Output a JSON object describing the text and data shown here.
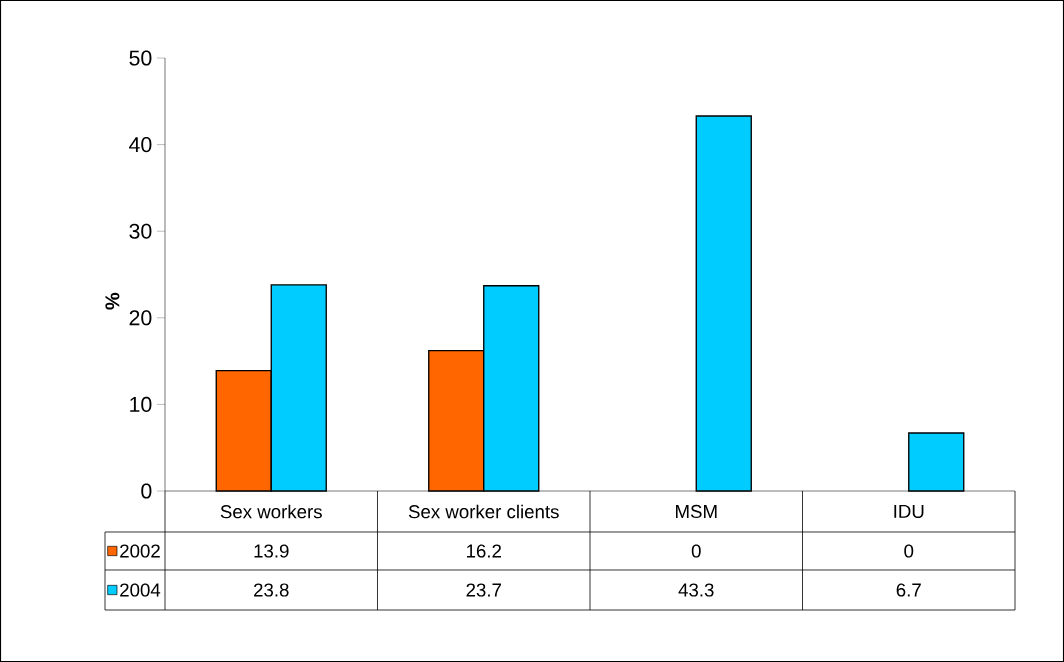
{
  "chart_data": {
    "type": "bar",
    "ylabel": "%",
    "categories": [
      "Sex workers",
      "Sex worker clients",
      "MSM",
      "IDU"
    ],
    "series": [
      {
        "name": "2002",
        "color": "#ff6600",
        "values": [
          13.9,
          16.2,
          0,
          0
        ]
      },
      {
        "name": "2004",
        "color": "#00ccff",
        "values": [
          23.8,
          23.7,
          43.3,
          6.7
        ]
      }
    ],
    "ylim": [
      0,
      50
    ],
    "yticks": [
      0,
      10,
      20,
      30,
      40,
      50
    ],
    "data_labels": true,
    "legend": "bottom"
  }
}
